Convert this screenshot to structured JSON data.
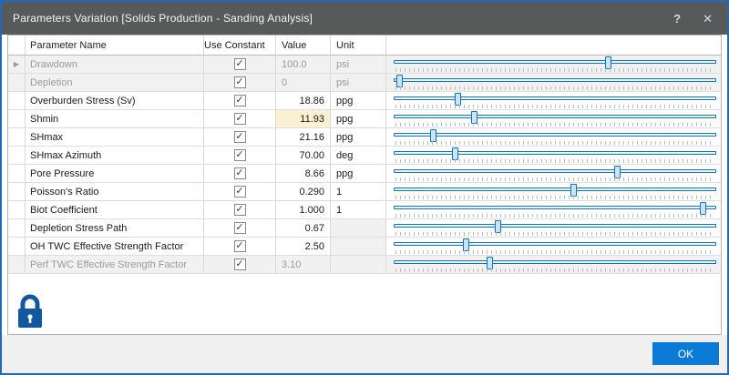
{
  "window": {
    "title": "Parameters Variation [Solids Production - Sanding Analysis]",
    "help_label": "?",
    "close_label": "✕",
    "ok_label": "OK"
  },
  "colors": {
    "window_border_blue": "#2269b5",
    "titlebar_gray": "#58595b",
    "slider_blue": "#1273bd",
    "slider_thumb_fill": "#cce4f7",
    "ok_button_blue": "#0b7bd7",
    "lock_blue": "#11589f",
    "value_highlight_yellow": "#fbf0d3",
    "disabled_row_gray": "#f1f1f2"
  },
  "icons": {
    "lock": "lock-icon",
    "row_indicator": "▶"
  },
  "table": {
    "columns": [
      {
        "id": "indicator",
        "label": ""
      },
      {
        "id": "name",
        "label": "Parameter Name"
      },
      {
        "id": "constant",
        "label": "Use Constant"
      },
      {
        "id": "value",
        "label": "Value"
      },
      {
        "id": "unit",
        "label": "Unit"
      },
      {
        "id": "slider",
        "label": ""
      }
    ],
    "rows": [
      {
        "name": "Drawdown",
        "checked": true,
        "value": "100.0",
        "unit": "psi",
        "slider": 0.67,
        "disabled": true,
        "active": true,
        "value_align": "left"
      },
      {
        "name": "Depletion",
        "checked": true,
        "value": "0",
        "unit": "psi",
        "slider": 0.01,
        "disabled": true,
        "value_align": "left"
      },
      {
        "name": "Overburden Stress (Sv)",
        "checked": true,
        "value": "18.86",
        "unit": "ppg",
        "slider": 0.195
      },
      {
        "name": "Shmin",
        "checked": true,
        "value": "11.93",
        "unit": "ppg",
        "slider": 0.245,
        "value_highlight": true
      },
      {
        "name": "SHmax",
        "checked": true,
        "value": "21.16",
        "unit": "ppg",
        "slider": 0.115
      },
      {
        "name": "SHmax Azimuth",
        "checked": true,
        "value": "70.00",
        "unit": "deg",
        "slider": 0.185
      },
      {
        "name": "Pore Pressure",
        "checked": true,
        "value": "8.66",
        "unit": "ppg",
        "slider": 0.7
      },
      {
        "name": "Poisson's Ratio",
        "checked": true,
        "value": "0.290",
        "unit": "1",
        "slider": 0.56
      },
      {
        "name": "Biot Coefficient",
        "checked": true,
        "value": "1.000",
        "unit": "1",
        "slider": 0.97
      },
      {
        "name": "Depletion Stress Path",
        "checked": true,
        "value": "0.67",
        "unit": "",
        "slider": 0.32,
        "unit_disabled": true
      },
      {
        "name": "OH TWC Effective Strength Factor",
        "checked": true,
        "value": "2.50",
        "unit": "",
        "slider": 0.22,
        "unit_disabled": true
      },
      {
        "name": "Perf TWC Effective Strength Factor",
        "checked": true,
        "value": "3.10",
        "unit": "",
        "slider": 0.295,
        "disabled": true,
        "value_align": "left",
        "unit_disabled": true
      }
    ]
  }
}
